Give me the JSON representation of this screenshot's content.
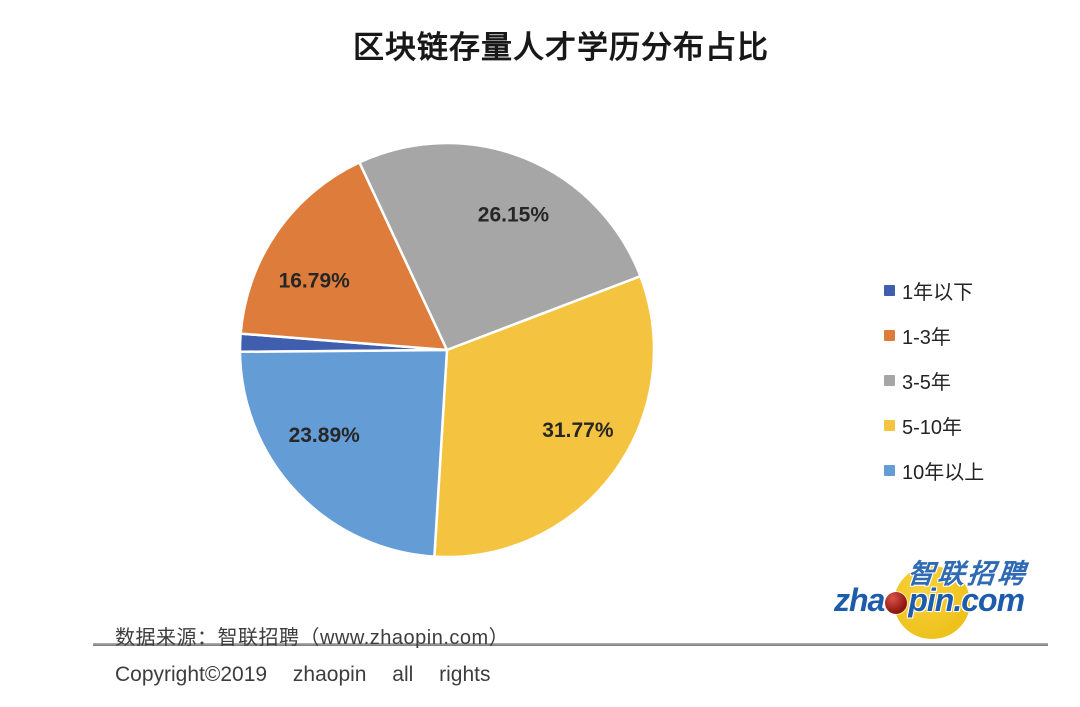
{
  "title": "区块链存量人才学历分布占比",
  "chart_data": {
    "type": "pie",
    "title": "区块链存量人才学历分布占比",
    "value_unit": "%",
    "label_format": "two-decimal-percent",
    "start_angle_deg": 269.5,
    "direction": "clockwise",
    "legend_position": "right",
    "series": [
      {
        "name": "1年以下",
        "value": 1.4,
        "color": "#3f5ead",
        "label": "1.40%"
      },
      {
        "name": "1-3年",
        "value": 16.79,
        "color": "#de7d3b",
        "label": "16.79%"
      },
      {
        "name": "3-5年",
        "value": 26.15,
        "color": "#a6a6a6",
        "label": "26.15%"
      },
      {
        "name": "5-10年",
        "value": 31.77,
        "color": "#f4c33f",
        "label": "31.77%"
      },
      {
        "name": "10年以上",
        "value": 23.89,
        "color": "#649cd6",
        "label": "23.89%"
      }
    ]
  },
  "footer": {
    "source": "数据来源：智联招聘（www.zhaopin.com）",
    "copyright": "Copyright©2019 zhaopin all rights"
  },
  "logo": {
    "brand_cn": "智联招聘",
    "brand_en_prefix": "zha",
    "brand_en_suffix": "pin.com",
    "accent_yellow": "#eec11b",
    "accent_blue": "#1c5cab",
    "accent_red": "#8d1510"
  }
}
